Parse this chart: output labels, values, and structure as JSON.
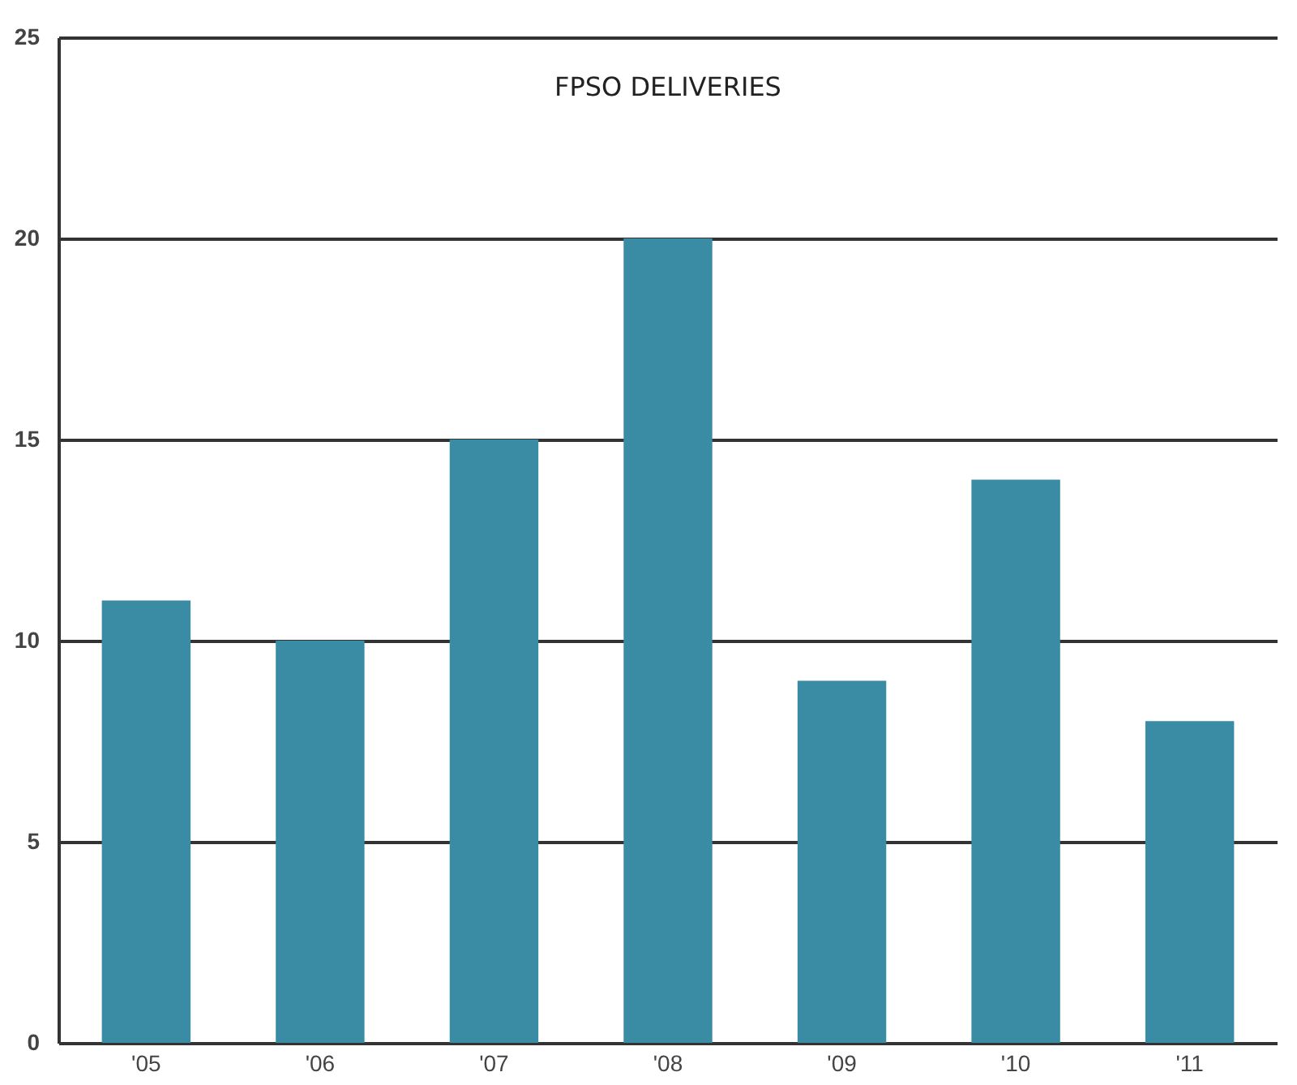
{
  "chart_data": {
    "type": "bar",
    "title": "FPSO DELIVERIES",
    "categories": [
      "'05",
      "'06",
      "'07",
      "'08",
      "'09",
      "'10",
      "'11"
    ],
    "values": [
      11,
      10,
      15,
      20,
      9,
      14,
      8
    ],
    "color": "#3a8ca5",
    "ylim": [
      0,
      25
    ],
    "yticks": [
      0,
      5,
      10,
      15,
      20,
      25
    ],
    "grid": "y"
  }
}
